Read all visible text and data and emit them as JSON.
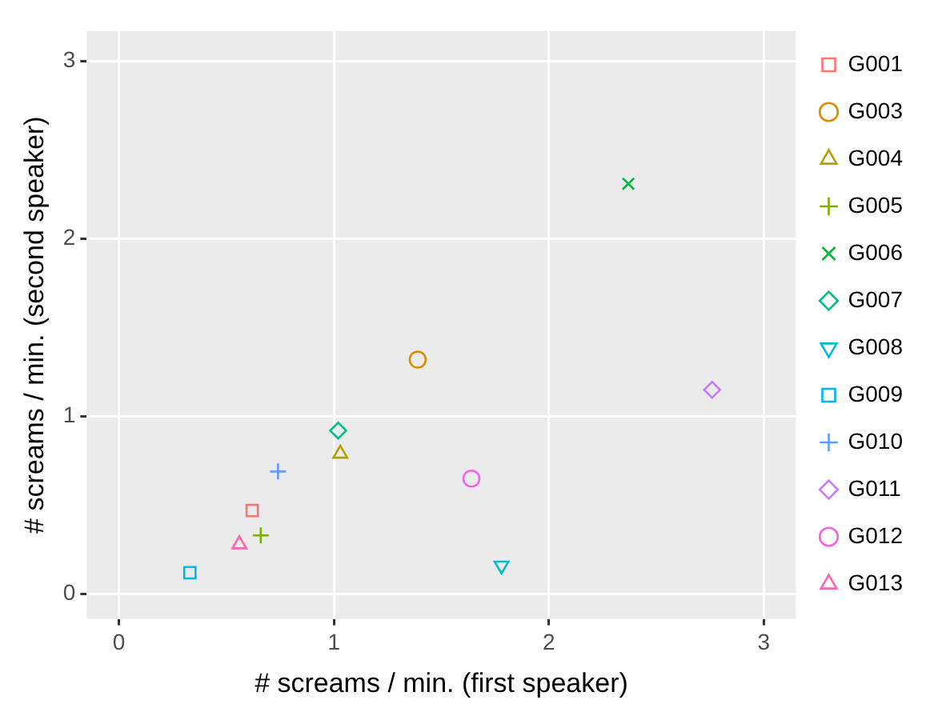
{
  "chart_data": {
    "type": "scatter",
    "xlabel": "# screams / min. (first speaker)",
    "ylabel": "# screams / min. (second speaker)",
    "xlim": [
      -0.15,
      3.15
    ],
    "ylim": [
      -0.14,
      3.17
    ],
    "xticks": [
      0,
      1,
      2,
      3
    ],
    "yticks": [
      0,
      1,
      2,
      3
    ],
    "grid": true,
    "legend": "right",
    "series": [
      {
        "name": "G001",
        "color": "#F8766D",
        "marker": "square",
        "x": [
          0.62
        ],
        "values": [
          0.47
        ]
      },
      {
        "name": "G003",
        "color": "#DE8C00",
        "marker": "circle",
        "x": [
          1.39
        ],
        "values": [
          1.32
        ]
      },
      {
        "name": "G004",
        "color": "#B79F00",
        "marker": "triangle",
        "x": [
          1.03
        ],
        "values": [
          0.79
        ]
      },
      {
        "name": "G005",
        "color": "#7CAE00",
        "marker": "cross",
        "x": [
          0.66
        ],
        "values": [
          0.33
        ]
      },
      {
        "name": "G006",
        "color": "#00BA38",
        "marker": "x",
        "x": [
          2.37
        ],
        "values": [
          2.31
        ]
      },
      {
        "name": "G007",
        "color": "#00C08B",
        "marker": "diamond",
        "x": [
          1.02
        ],
        "values": [
          0.92
        ]
      },
      {
        "name": "G008",
        "color": "#00BFC4",
        "marker": "triangle-down",
        "x": [
          1.78
        ],
        "values": [
          0.16
        ]
      },
      {
        "name": "G009",
        "color": "#00B4F0",
        "marker": "square",
        "x": [
          0.33
        ],
        "values": [
          0.12
        ]
      },
      {
        "name": "G010",
        "color": "#619CFF",
        "marker": "cross",
        "x": [
          0.74
        ],
        "values": [
          0.69
        ]
      },
      {
        "name": "G011",
        "color": "#C77CFF",
        "marker": "diamond",
        "x": [
          2.76
        ],
        "values": [
          1.15
        ]
      },
      {
        "name": "G012",
        "color": "#F564E3",
        "marker": "circle",
        "x": [
          1.64
        ],
        "values": [
          0.65
        ]
      },
      {
        "name": "G013",
        "color": "#FF64B0",
        "marker": "triangle",
        "x": [
          0.56
        ],
        "values": [
          0.28
        ]
      }
    ]
  }
}
